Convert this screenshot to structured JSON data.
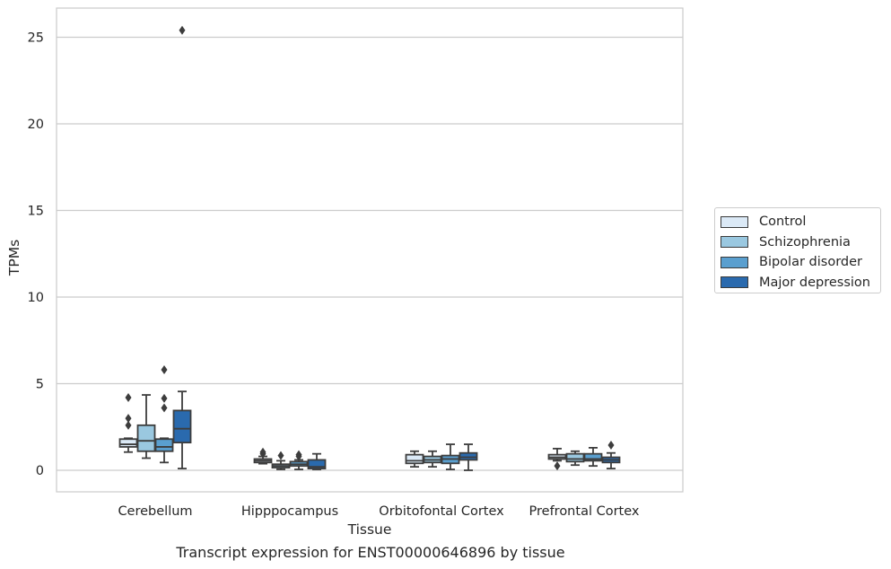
{
  "caption": "Transcript expression for ENST00000646896 by tissue",
  "chart_data": {
    "type": "box",
    "title": "",
    "xlabel": "Tissue",
    "ylabel": "TPMs",
    "ylim": [
      -1.25,
      26.7
    ],
    "yticks": [
      0,
      5,
      10,
      15,
      20,
      25
    ],
    "ytick_labels": [
      "0",
      "5",
      "10",
      "15",
      "20",
      "25"
    ],
    "grid": "horizontal",
    "legend_position": "right",
    "categories": [
      "Cerebellum",
      "Hipppocampus",
      "Orbitofontal Cortex",
      "Prefrontal Cortex"
    ],
    "series": [
      {
        "name": "Control",
        "color": "#dbe9f6",
        "boxes": [
          {
            "whislo": 1.05,
            "q1": 1.35,
            "med": 1.5,
            "q3": 1.8,
            "whishi": 1.85,
            "fliers": [
              2.6,
              3.0,
              4.2
            ]
          },
          {
            "whislo": 0.38,
            "q1": 0.45,
            "med": 0.55,
            "q3": 0.65,
            "whishi": 0.8,
            "fliers": [
              0.95,
              1.05
            ]
          },
          {
            "whislo": 0.2,
            "q1": 0.4,
            "med": 0.55,
            "q3": 0.9,
            "whishi": 1.1,
            "fliers": []
          },
          {
            "whislo": 0.55,
            "q1": 0.65,
            "med": 0.75,
            "q3": 0.9,
            "whishi": 1.25,
            "fliers": [
              0.25
            ]
          }
        ]
      },
      {
        "name": "Schizophrenia",
        "color": "#9ac8e0",
        "boxes": [
          {
            "whislo": 0.7,
            "q1": 1.1,
            "med": 1.7,
            "q3": 2.6,
            "whishi": 4.35,
            "fliers": []
          },
          {
            "whislo": 0.05,
            "q1": 0.15,
            "med": 0.25,
            "q3": 0.35,
            "whishi": 0.55,
            "fliers": [
              0.85
            ]
          },
          {
            "whislo": 0.2,
            "q1": 0.45,
            "med": 0.6,
            "q3": 0.8,
            "whishi": 1.1,
            "fliers": []
          },
          {
            "whislo": 0.3,
            "q1": 0.5,
            "med": 0.65,
            "q3": 0.95,
            "whishi": 1.1,
            "fliers": []
          }
        ]
      },
      {
        "name": "Bipolar disorder",
        "color": "#5a9fcf",
        "boxes": [
          {
            "whislo": 0.45,
            "q1": 1.1,
            "med": 1.35,
            "q3": 1.8,
            "whishi": 1.85,
            "fliers": [
              3.6,
              4.15,
              5.8
            ]
          },
          {
            "whislo": 0.05,
            "q1": 0.25,
            "med": 0.35,
            "q3": 0.5,
            "whishi": 0.6,
            "fliers": [
              0.8,
              0.9
            ]
          },
          {
            "whislo": 0.05,
            "q1": 0.4,
            "med": 0.65,
            "q3": 0.85,
            "whishi": 1.5,
            "fliers": []
          },
          {
            "whislo": 0.25,
            "q1": 0.55,
            "med": 0.65,
            "q3": 0.95,
            "whishi": 1.3,
            "fliers": []
          }
        ]
      },
      {
        "name": "Major depression",
        "color": "#2a6aae",
        "boxes": [
          {
            "whislo": 0.1,
            "q1": 1.6,
            "med": 2.4,
            "q3": 3.45,
            "whishi": 4.55,
            "fliers": [
              25.4
            ]
          },
          {
            "whislo": 0.05,
            "q1": 0.1,
            "med": 0.2,
            "q3": 0.6,
            "whishi": 0.95,
            "fliers": []
          },
          {
            "whislo": 0.0,
            "q1": 0.6,
            "med": 0.75,
            "q3": 1.0,
            "whishi": 1.5,
            "fliers": []
          },
          {
            "whislo": 0.1,
            "q1": 0.45,
            "med": 0.6,
            "q3": 0.75,
            "whishi": 1.0,
            "fliers": [
              1.45
            ]
          }
        ]
      }
    ]
  }
}
